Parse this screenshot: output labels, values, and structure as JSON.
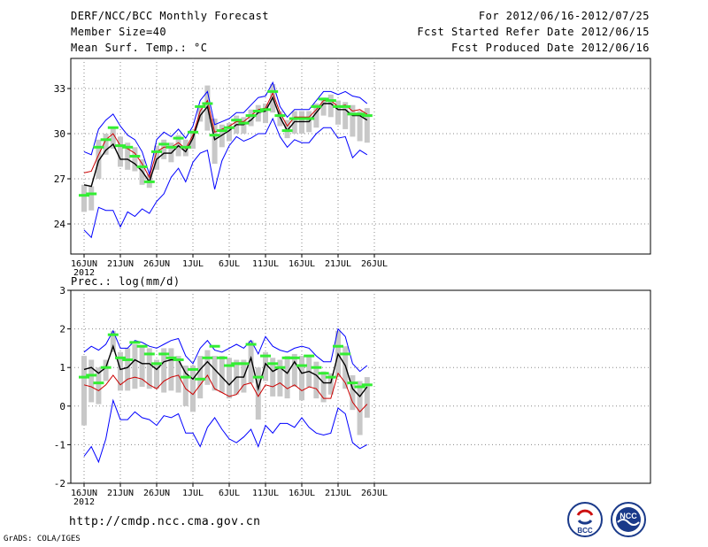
{
  "header": {
    "title": "DERF/NCC/BCC Monthly Forecast",
    "member_size": "Member Size=40",
    "variable": "Mean Surf. Temp.: °C",
    "period": "For 2012/06/16-2012/07/25",
    "fcst_started": "Fcst Started Refer Date 2012/06/15",
    "fcst_produced": "Fcst Produced Date 2012/06/16"
  },
  "footer": {
    "url": "http://cmdp.ncc.cma.gov.cn",
    "grads": "GrADS: COLA/IGES",
    "logo_bcc": "BCC",
    "logo_ncc": "NCC"
  },
  "colors": {
    "max_line": "#0000ff",
    "min_line": "#0000ff",
    "median_line": "#cc0000",
    "mean_line": "#000000",
    "box": "#c8c8c8",
    "marker": "#33ee33",
    "grid": "#888888"
  },
  "chart_data": [
    {
      "type": "line",
      "title": "Mean Surf. Temp.: °C",
      "x_start": "16JUN 2012",
      "x_ticks": [
        "16JUN",
        "21JUN",
        "26JUN",
        "1JUL",
        "6JUL",
        "11JUL",
        "16JUL",
        "21JUL",
        "26JUL"
      ],
      "x_year_label": "2012",
      "ylim": [
        22,
        35
      ],
      "y_ticks": [
        "24",
        "27",
        "30",
        "33"
      ],
      "y_tick_values": [
        24,
        27,
        30,
        33
      ],
      "series": [
        {
          "name": "max",
          "values": [
            28.8,
            28.6,
            30.3,
            30.9,
            31.3,
            30.5,
            29.9,
            29.6,
            28.8,
            27.3,
            29.6,
            30.1,
            29.8,
            30.3,
            29.7,
            30.5,
            32.2,
            32.8,
            30.6,
            30.8,
            31.0,
            31.4,
            31.4,
            31.9,
            32.4,
            32.5,
            33.4,
            31.8,
            31.1,
            31.6,
            31.6,
            31.6,
            32.2,
            32.8,
            32.8,
            32.6,
            32.8,
            32.5,
            32.4,
            32.0
          ]
        },
        {
          "name": "median",
          "values": [
            27.4,
            27.5,
            28.6,
            29.6,
            30.0,
            29.2,
            29.0,
            28.7,
            28.0,
            27.1,
            28.8,
            29.1,
            29.1,
            29.4,
            29.0,
            29.9,
            31.5,
            32.2,
            30.1,
            30.3,
            30.5,
            30.8,
            30.8,
            31.2,
            31.6,
            31.7,
            32.7,
            31.4,
            30.5,
            31.1,
            31.1,
            31.1,
            31.6,
            32.2,
            32.2,
            31.8,
            31.9,
            31.5,
            31.6,
            31.3
          ]
        },
        {
          "name": "mean",
          "values": [
            26.6,
            26.5,
            28.2,
            28.9,
            29.3,
            28.3,
            28.3,
            28.0,
            27.5,
            26.8,
            28.3,
            28.7,
            28.7,
            29.2,
            28.8,
            29.7,
            31.2,
            31.8,
            29.6,
            29.9,
            30.2,
            30.6,
            30.6,
            30.9,
            31.4,
            31.5,
            32.4,
            31.1,
            30.2,
            30.8,
            30.8,
            30.8,
            31.4,
            32.0,
            32.0,
            31.6,
            31.6,
            31.2,
            31.2,
            30.9
          ]
        },
        {
          "name": "min",
          "values": [
            23.6,
            23.1,
            25.1,
            24.9,
            24.9,
            23.8,
            24.8,
            24.5,
            25.0,
            24.7,
            25.5,
            26.0,
            27.1,
            27.7,
            26.8,
            28.1,
            28.7,
            28.9,
            26.3,
            28.2,
            29.2,
            29.8,
            29.5,
            29.7,
            30.0,
            30.0,
            31.0,
            29.8,
            29.1,
            29.6,
            29.4,
            29.4,
            30.0,
            30.4,
            30.4,
            29.7,
            29.8,
            28.4,
            28.9,
            28.6
          ]
        },
        {
          "name": "box_high",
          "values": [
            26.6,
            26.5,
            29.6,
            30.0,
            30.4,
            29.8,
            29.4,
            29.1,
            28.3,
            27.3,
            29.2,
            29.6,
            29.4,
            29.9,
            29.6,
            30.2,
            31.8,
            33.2,
            31.0,
            30.6,
            30.7,
            31.2,
            31.1,
            31.6,
            31.9,
            32.0,
            33.3,
            31.5,
            30.9,
            31.5,
            31.5,
            31.5,
            32.0,
            32.4,
            32.6,
            32.2,
            32.1,
            31.9,
            31.5,
            31.7
          ]
        },
        {
          "name": "box_low",
          "values": [
            24.8,
            24.9,
            27.0,
            28.6,
            29.0,
            27.8,
            27.6,
            27.5,
            26.6,
            26.4,
            27.6,
            28.3,
            28.1,
            28.5,
            28.5,
            29.0,
            30.8,
            30.2,
            28.0,
            29.1,
            29.5,
            30.0,
            30.0,
            30.5,
            30.8,
            30.7,
            31.4,
            30.5,
            29.7,
            30.0,
            30.0,
            30.1,
            30.4,
            31.2,
            31.1,
            30.6,
            30.3,
            29.8,
            29.5,
            29.4
          ]
        },
        {
          "name": "marker",
          "values": [
            25.9,
            26.0,
            29.1,
            29.6,
            30.4,
            29.2,
            29.1,
            28.5,
            27.8,
            26.8,
            28.8,
            29.3,
            29.1,
            29.7,
            29.1,
            30.1,
            31.8,
            32.0,
            29.9,
            30.2,
            30.4,
            30.9,
            30.7,
            31.2,
            31.5,
            31.6,
            32.8,
            31.2,
            30.2,
            31.0,
            31.0,
            31.0,
            31.8,
            32.3,
            32.2,
            31.8,
            31.8,
            31.3,
            31.3,
            31.2
          ]
        }
      ]
    },
    {
      "type": "line",
      "title": "Prec.: log(mm/d)",
      "x_start": "16JUN 2012",
      "x_ticks": [
        "16JUN",
        "21JUN",
        "26JUN",
        "1JUL",
        "6JUL",
        "11JUL",
        "16JUL",
        "21JUL",
        "26JUL"
      ],
      "x_year_label": "2012",
      "ylim": [
        -2,
        3
      ],
      "y_ticks": [
        "-2",
        "-1",
        "0",
        "1",
        "2",
        "3"
      ],
      "y_tick_values": [
        -2,
        -1,
        0,
        1,
        2,
        3
      ],
      "series": [
        {
          "name": "max",
          "values": [
            1.4,
            1.55,
            1.45,
            1.6,
            1.95,
            1.5,
            1.5,
            1.7,
            1.65,
            1.55,
            1.5,
            1.6,
            1.7,
            1.75,
            1.3,
            1.1,
            1.5,
            1.7,
            1.45,
            1.4,
            1.5,
            1.6,
            1.5,
            1.7,
            1.35,
            1.8,
            1.55,
            1.45,
            1.4,
            1.5,
            1.55,
            1.5,
            1.3,
            1.15,
            1.15,
            2.0,
            1.8,
            1.1,
            0.9,
            1.05
          ]
        },
        {
          "name": "median",
          "values": [
            0.55,
            0.5,
            0.4,
            0.55,
            0.8,
            0.55,
            0.7,
            0.75,
            0.7,
            0.55,
            0.45,
            0.65,
            0.75,
            0.8,
            0.45,
            0.3,
            0.55,
            0.8,
            0.45,
            0.35,
            0.25,
            0.3,
            0.55,
            0.6,
            0.25,
            0.55,
            0.5,
            0.6,
            0.45,
            0.55,
            0.4,
            0.5,
            0.45,
            0.2,
            0.2,
            0.85,
            0.6,
            0.1,
            -0.15,
            0.05
          ]
        },
        {
          "name": "mean",
          "values": [
            0.95,
            1.0,
            0.85,
            1.0,
            1.55,
            0.95,
            1.0,
            1.2,
            1.1,
            1.1,
            0.95,
            1.15,
            1.2,
            1.2,
            0.85,
            0.7,
            0.95,
            1.15,
            0.95,
            0.75,
            0.55,
            0.75,
            0.75,
            1.25,
            0.45,
            1.1,
            0.9,
            1.0,
            0.85,
            1.15,
            0.85,
            0.9,
            0.8,
            0.6,
            0.6,
            1.35,
            1.05,
            0.45,
            0.25,
            0.5
          ]
        },
        {
          "name": "min",
          "values": [
            -1.3,
            -1.05,
            -1.45,
            -0.85,
            0.15,
            -0.35,
            -0.35,
            -0.15,
            -0.3,
            -0.35,
            -0.5,
            -0.25,
            -0.3,
            -0.2,
            -0.7,
            -0.7,
            -1.05,
            -0.55,
            -0.3,
            -0.6,
            -0.85,
            -0.95,
            -0.8,
            -0.6,
            -1.05,
            -0.5,
            -0.7,
            -0.45,
            -0.45,
            -0.55,
            -0.3,
            -0.55,
            -0.7,
            -0.75,
            -0.7,
            -0.05,
            -0.2,
            -0.95,
            -1.1,
            -1.0
          ]
        },
        {
          "name": "box_high",
          "values": [
            1.3,
            1.2,
            1.0,
            1.2,
            1.95,
            1.4,
            1.5,
            1.6,
            1.55,
            1.5,
            1.2,
            1.5,
            1.5,
            1.3,
            1.05,
            1.05,
            1.3,
            1.45,
            1.3,
            1.3,
            1.25,
            1.2,
            1.2,
            1.7,
            1.0,
            1.4,
            1.25,
            1.2,
            1.3,
            1.35,
            1.3,
            1.3,
            1.15,
            0.9,
            0.85,
            1.95,
            1.55,
            0.8,
            0.65,
            0.75
          ]
        },
        {
          "name": "box_low",
          "values": [
            -0.5,
            0.1,
            0.05,
            0.65,
            1.4,
            0.4,
            0.4,
            0.45,
            0.5,
            0.45,
            0.45,
            0.35,
            0.4,
            0.35,
            0.0,
            -0.15,
            0.2,
            0.55,
            0.4,
            0.35,
            0.2,
            0.3,
            0.35,
            0.6,
            -0.35,
            0.65,
            0.25,
            0.25,
            0.2,
            0.5,
            0.15,
            0.5,
            0.2,
            0.1,
            0.3,
            0.75,
            0.45,
            -0.1,
            -0.75,
            -0.3
          ]
        },
        {
          "name": "marker",
          "values": [
            0.75,
            0.8,
            0.6,
            1.0,
            1.85,
            1.25,
            1.2,
            1.65,
            1.55,
            1.35,
            1.1,
            1.35,
            1.25,
            1.2,
            0.75,
            0.95,
            0.7,
            1.25,
            1.55,
            1.25,
            1.05,
            1.1,
            1.1,
            1.6,
            0.75,
            1.3,
            1.1,
            1.0,
            1.25,
            1.25,
            1.05,
            1.3,
            1.0,
            0.85,
            0.75,
            1.55,
            1.35,
            0.6,
            0.5,
            0.55
          ]
        }
      ]
    }
  ]
}
